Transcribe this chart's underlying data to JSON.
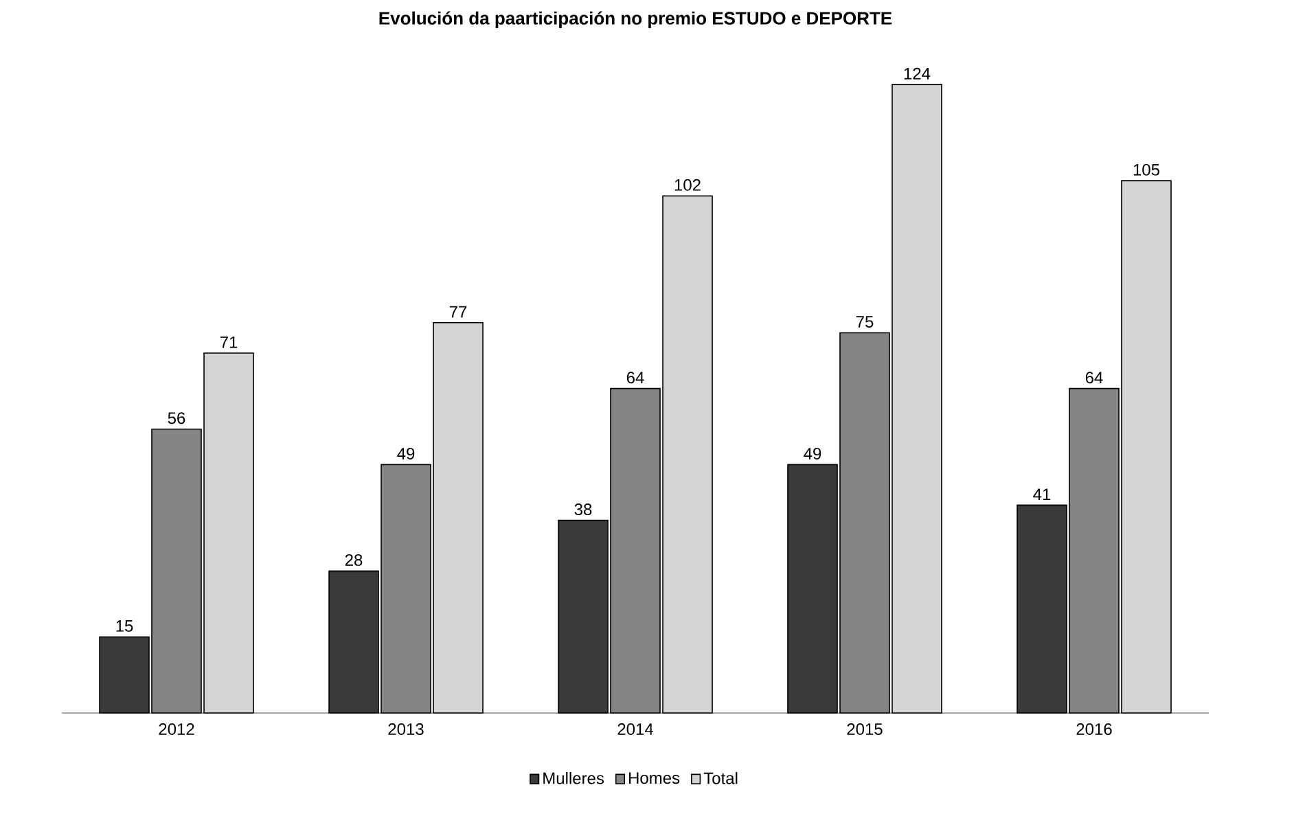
{
  "chart_data": {
    "type": "bar",
    "title": "Evolución da paarticipación no premio ESTUDO e DEPORTE",
    "categories": [
      "2012",
      "2013",
      "2014",
      "2015",
      "2016"
    ],
    "series": [
      {
        "name": "Mulleres",
        "color": "#3a3a3a",
        "values": [
          15,
          28,
          38,
          49,
          41
        ]
      },
      {
        "name": "Homes",
        "color": "#858585",
        "values": [
          56,
          49,
          64,
          75,
          64
        ]
      },
      {
        "name": "Total",
        "color": "#d4d4d4",
        "values": [
          71,
          77,
          102,
          124,
          105
        ]
      }
    ],
    "data_labels": true,
    "legend": "bottom"
  }
}
